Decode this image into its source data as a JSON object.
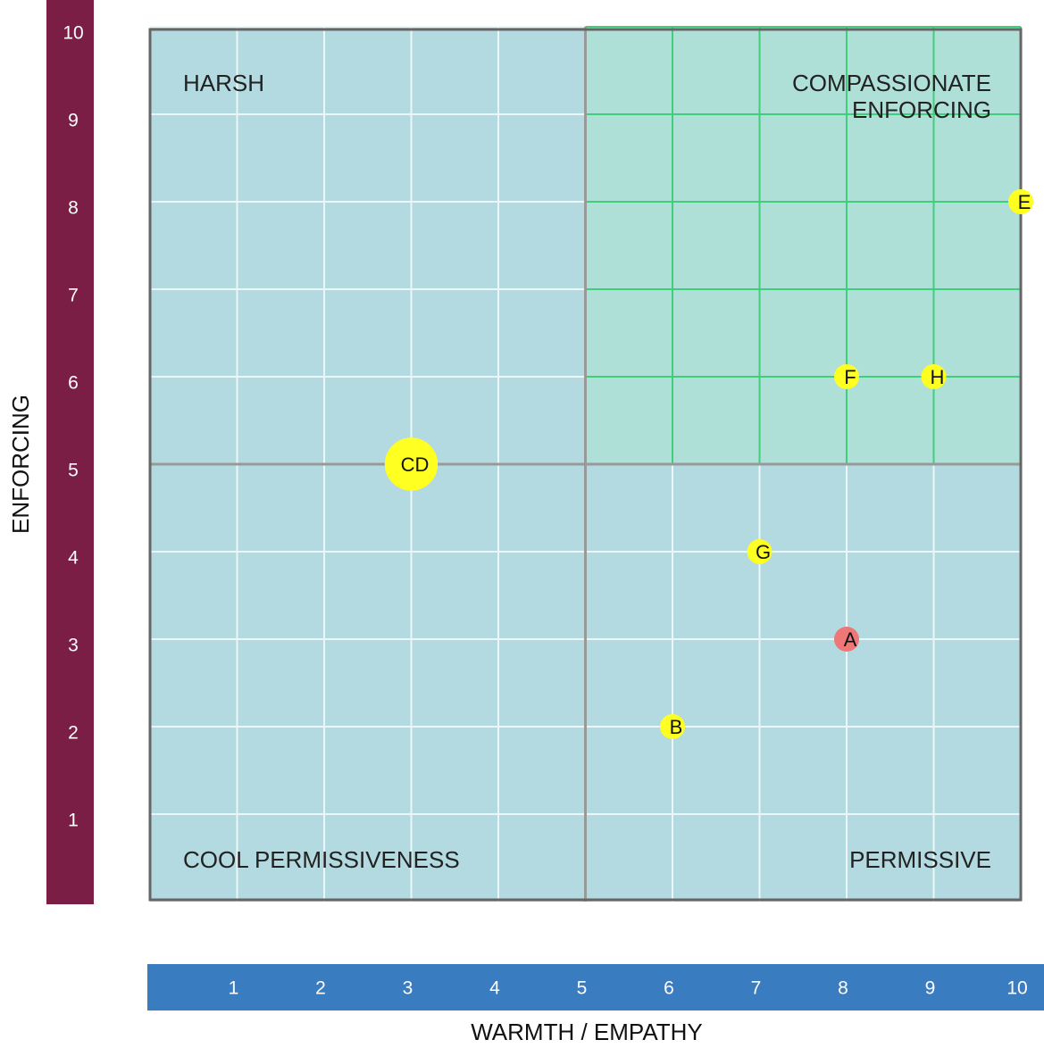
{
  "chart_data": {
    "type": "scatter",
    "x_label": "WARMTH / EMPATHY",
    "y_label": "ENFORCING",
    "xlim": [
      0,
      10
    ],
    "ylim": [
      0,
      10
    ],
    "xticks": [
      1,
      2,
      3,
      4,
      5,
      6,
      7,
      8,
      9,
      10
    ],
    "yticks": [
      1,
      2,
      3,
      4,
      5,
      6,
      7,
      8,
      9,
      10
    ],
    "quadrant_split": [
      5,
      5
    ],
    "grid": true,
    "annotations": [
      "HARSH",
      "COMPASSIONATE\nENFORCING",
      "COOL PERMISSIVENESS",
      "PERMISSIVE"
    ],
    "series": [
      {
        "labels": [
          "A",
          "B",
          "CD",
          "E",
          "F",
          "G",
          "H"
        ],
        "x": [
          8,
          6,
          3,
          10,
          8,
          7,
          9
        ],
        "values": [
          3,
          2,
          5,
          8,
          6,
          4,
          6
        ],
        "sizes": [
          1,
          1,
          2,
          1,
          1,
          1,
          1
        ],
        "colors": [
          "#ee7777",
          "#ffff22",
          "#ffff22",
          "#ffff22",
          "#ffff22",
          "#ffff22",
          "#ffff22"
        ]
      }
    ]
  }
}
